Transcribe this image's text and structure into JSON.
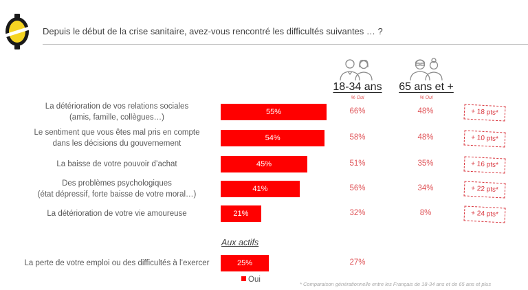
{
  "header": {
    "title": "Depuis le début de la crise sanitaire, avez-vous rencontré les difficultés suivantes … ?",
    "logo_icon": "yellow-coin-logo-icon"
  },
  "columns": [
    {
      "label": "18-34 ans",
      "sub": "% Oui",
      "icon": "young-couple-icon"
    },
    {
      "label": "65 ans et +",
      "sub": "% Oui",
      "icon": "elderly-couple-icon"
    }
  ],
  "section_label": "Aux actifs",
  "legend": {
    "label": "Oui",
    "color": "#ff0000"
  },
  "footnote": "* Comparaison générationnelle entre les Français de 18-34 ans et de 65 ans et plus",
  "chart_data": {
    "type": "bar",
    "orientation": "horizontal",
    "title": "Depuis le début de la crise sanitaire, avez-vous rencontré les difficultés suivantes … ?",
    "categories": [
      [
        "La détérioration de vos relations sociales",
        "(amis, famille, collègues…)"
      ],
      [
        "Le sentiment que vous êtes mal pris en compte",
        "dans les décisions du gouvernement"
      ],
      [
        "La baisse de votre pouvoir d’achat"
      ],
      [
        "Des problèmes psychologiques",
        "(état dépressif, forte baisse de votre moral…)"
      ],
      [
        "La détérioration de votre vie amoureuse"
      ],
      [
        "La perte de votre emploi ou des difficultés à l’exercer"
      ]
    ],
    "series": [
      {
        "name": "Oui",
        "color": "#ff0000",
        "values": [
          55,
          54,
          45,
          41,
          21,
          25
        ],
        "labels": [
          "55%",
          "54%",
          "45%",
          "41%",
          "21%",
          "25%"
        ]
      }
    ],
    "table": {
      "18-34 ans": [
        "66%",
        "58%",
        "51%",
        "56%",
        "32%",
        "27%"
      ],
      "65 ans et +": [
        "48%",
        "48%",
        "35%",
        "34%",
        "8%",
        null
      ],
      "difference": [
        "+ 18 pts*",
        "+ 10 pts*",
        "+ 16 pts*",
        "+ 22 pts*",
        "+ 24 pts*",
        null
      ]
    },
    "xlim": [
      0,
      100
    ],
    "legend_position": "bottom"
  }
}
